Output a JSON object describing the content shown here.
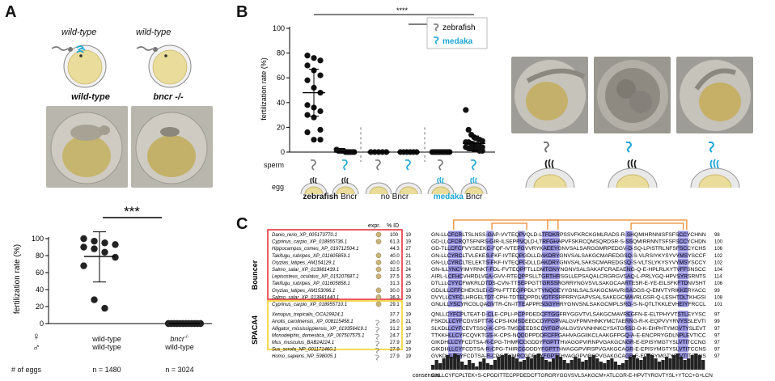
{
  "panel_a": {
    "letter": "A",
    "schematic_top_labels": [
      "wild-type",
      "wild-type"
    ],
    "genotypes": [
      "wild-type",
      "bncr -/-"
    ],
    "significance": "***",
    "female_symbol": "♀",
    "male_symbol": "♂",
    "x_groups": [
      {
        "line1": "wild-type",
        "line2": "wild-type"
      },
      {
        "line1": "bncr",
        "line1_sup": "-/-",
        "line2": "wild-type"
      }
    ],
    "eggs_label": "# of eggs",
    "egg_counts": [
      "n = 1480",
      "n = 3024"
    ]
  },
  "panel_b": {
    "letter": "B",
    "sperm_label": "sperm",
    "egg_label": "egg",
    "sig_labels": [
      "****",
      "**",
      "****"
    ],
    "legend": {
      "zebrafish": "zebrafish",
      "medaka": "medaka"
    },
    "group_labels": [
      {
        "prefix": "zebrafish",
        "suffix": " Bncr"
      },
      {
        "prefix": "no",
        "suffix": " Bncr"
      },
      {
        "prefix": "medaka",
        "suffix": " Bncr"
      }
    ]
  },
  "panel_c": {
    "letter": "C",
    "col_expr": "expr.",
    "col_id": "% ID",
    "group_bouncer": "Bouncer",
    "group_spaca4": "SPACA4",
    "consensus_label": "consensus",
    "consensus_seq": "GNLLCYFCPLTEK+S-CPGDITTECPPDEDCFTGRGRYGGVSVLSAKGCM+ATLCGR-E-HPVTYRGVTYSL+YTCC+G+LCN",
    "rows": [
      {
        "name": "Danio_rerio_XP_005173770.1",
        "id": "100",
        "start": "19",
        "seq": "GN-LLCFCRLTSLNSS-GAP-VVTEQPVQLD-LTFDKRPSSVFKRCKGMLRADS-R-SHQMIHRNNISFSFSCCYCHNN",
        "end": "98"
      },
      {
        "name": "Cyprinus_carpio_XP_018955736.1",
        "id": "61.3",
        "start": "19",
        "seq": "GD-LLCFCRQTSFNRS-GIR-ILSEPPVQLD-LTRFGHAPVFSKRCQMSQRDSR-S-SSQMIRRNNTSFSFSCCYCHDN",
        "end": "100"
      },
      {
        "name": "Hippocampus_comes_XP_019712504.1",
        "id": "44.3",
        "start": "27",
        "seq": "GD-TLLCFCFVYSEEKC-FQF-IVTEPGVVRYKAEEYGNVSALSARGGMRPEDGV-D-SQ-LPISTRLNFSFSCCYCHSN",
        "end": "106"
      },
      {
        "name": "Takifugu_rubripes_XP_011605859.1",
        "id": "40.0",
        "start": "21",
        "seq": "GN-LLCYRCLTVLEKES-FKF-IVTEQPGDLLDAKDRYGNVSALSAKGCMAREDGSQ-S-VLRSIYKYSYVYMSYSCCFCHSS",
        "end": "102"
      },
      {
        "name": "Oryzias_latipes_AM154129.1",
        "id": "40.0",
        "start": "21",
        "seq": "GN-LLCYRCLTELEKTS-FKF-IVTEQPGDLLDAKDRYGNVSALSAKSCMAREDGSQ-S-VLTSLYKYSYVYMSYSCCYCHSS",
        "end": "102"
      },
      {
        "name": "Salmo_salar_XP_013981439.1",
        "id": "32.5",
        "start": "24",
        "seq": "GN-ILLYNCYIMYRNKT-FDL-FVTEQPFTLLDMTGNYNGNVSALSAKAFCRAEAENG-Q-E-HPLRLKYTVFFSNSCCSGYHTN",
        "end": "104"
      },
      {
        "name": "Lepisosteus_oculatus_XP_015207687.1",
        "id": "37.5",
        "start": "35",
        "seq": "AIRL-LCFHCVHRDLVEA-GVV-RTEQPPSLLTGRTHRSGLLEPSAQALCRGRGVSAQ-L-PRLYGQ-HPVSYRSRNTSTSSCCSDLLHTN",
        "end": "114"
      },
      {
        "name": "Takifugu_rubripes_XP_011605858.1",
        "id": "31.3",
        "start": "25",
        "seq": "DTLLLCYYCFWKRLDTDS-CVN-TTSEPPGTTGRSSRGRRYNGVSVLSAKGCAARTESR-E-YE-EILSFKFTDNVSHTSCCKDCHTN",
        "end": "106"
      },
      {
        "name": "Oryzias_latipes_AM153096.1",
        "id": "30.0",
        "start": "19",
        "seq": "GDLILLCFFCHEKSLEI-CPN-FTTEQPPDLYTYNQGEYYGNLSALSAKGCMAVRISADGS-Q-EMVTYRIKKERYACCNDCFHTN",
        "end": "99"
      },
      {
        "name": "Salmo_salar_XP_013981440.1",
        "id": "36.3",
        "start": "29",
        "seq": "DVYLLCYFCLHRGELTDT-CPH-TDTEQPPDLVDTFSRPRRYGAPVSALSAKEGCMAVRLGSR-Q-LESHTDLTKHGSIFTCCSDLLHTN",
        "end": "108"
      },
      {
        "name": "Cyprinus_carpio_XP_018955710.1",
        "id": "29.1",
        "start": "18",
        "seq": "GNLILLYSCYRCGLQAGVTR-CN-ITTEAPPRSGGYHRYGNVSNLSAKGCMPLSRG-S-N-QTLTKKLEVHEIYFRCCLNN",
        "end": "101"
      },
      {
        "name": "Xenopus_tropicalis_OCA29924.1",
        "id": "37.7",
        "start": "19",
        "seq": "QNLLCYFCPLTEAT-D-CLE-CPLI-PCPPDEDCFTGGFRYGGVTVLSAKGCMAVREGFN-E-ELTPHYVTSTLEYYSCCHSNLCN",
        "end": "97"
      },
      {
        "name": "Anolis_carolinensis_XP_008115458.1",
        "id": "26.0",
        "start": "21",
        "seq": "FSKDLLCYFCDVSPTT-K-CPS-IKMSDEEDCDYFGPVALGVFPMVHNKYMCTAERNG-R-K-EQPVVYRVYSSLEVTICCHTDLCN",
        "end": "99"
      },
      {
        "name": "Alligator_mississippiensis_XP_019356419.1",
        "id": "31.2",
        "start": "18",
        "seq": "SLKDLLCYFCEVTSSQ-K-CPS-TMSDEEDSCDYFGPVALGVSVVNHNKCYSATGRSG-D-K-EHPHTYMGVTYSLEVTICCHTDLCN",
        "end": "97"
      },
      {
        "name": "Monodelphis_domestica_XP_007507575.1",
        "id": "24.7",
        "start": "17",
        "seq": "TTKKHLLCYFCQVKTGS-K-CPS-NQDDPPDDFCFPGAHVAGGIIKCLAAKGFPGQ-A-E-ENCPRYGDLNPLEVTICCGLPLCN",
        "end": "97"
      },
      {
        "name": "Mus_musculus_BAB24224.1",
        "id": "27.9",
        "start": "19",
        "seq": "GIKDHLLCYFCDTSA-R-CPG-THMRCGGDDYFGPTTHVAGGPVIRNPVGAKGCNGR-E-EPISYMGTYSLVTITCCNGENLCN",
        "end": "97"
      },
      {
        "name": "Sus_scrofa_NP_001171460.1",
        "id": "27.9",
        "start": "19",
        "seq": "GIKDHLLCYFCDTSA-R-CPG-THIRCGDDDYFGPTTHVAGGPVIRSPVGAKGCAGR-E-EPISYMGTYSLVTITCCNSENLCN",
        "end": "97"
      },
      {
        "name": "Homo_sapiens_NP_598005.1",
        "id": "27.9",
        "start": "19",
        "seq": "GVKDHLLCYFCDTSA-R-CPG-TYMRCGDDDYFGPTTHVAGGPVIRSPVGAKGCAGR-E-EPVSYMGTYSLVTITCCNSENLCN",
        "end": "97"
      }
    ]
  },
  "colors": {
    "medaka": "#1aa6d6",
    "box_bouncer": "#e8343a",
    "box_spaca4": "#f2d02a",
    "orange": "#ec8a2e",
    "highlight": "#6f6ad0"
  },
  "chart_data": [
    {
      "type": "scatter",
      "panel": "A",
      "xlabel": "",
      "ylabel": "fertilization rate (%)",
      "ylim": [
        0,
        100
      ],
      "yticks": [
        0,
        20,
        40,
        60,
        80,
        100
      ],
      "categories": [
        "wild-type ♀ × wild-type ♂",
        "bncr -/- ♀ × wild-type ♂"
      ],
      "series": [
        {
          "name": "",
          "values": [
            [
              100,
              97,
              95,
              93,
              90,
              88,
              84,
              78,
              68,
              28,
              18
            ],
            [
              0,
              0,
              0,
              0,
              0,
              0,
              0,
              0,
              0,
              0,
              0,
              0,
              0,
              0,
              0,
              0,
              0,
              0,
              0,
              0,
              0,
              0,
              0,
              0
            ]
          ]
        }
      ],
      "summary": [
        {
          "mean": 79,
          "sd_low": 49,
          "sd_high": 108
        },
        {
          "mean": 0,
          "sd_low": 0,
          "sd_high": 0
        }
      ],
      "grid": false
    },
    {
      "type": "scatter",
      "panel": "B",
      "xlabel": "",
      "ylabel": "fertilization rate (%)",
      "ylim": [
        0,
        100
      ],
      "yticks": [
        0,
        20,
        40,
        60,
        80,
        100
      ],
      "categories": [
        "zebrafish Bncr + zebrafish sperm",
        "zebrafish Bncr + medaka sperm",
        "no Bncr + zebrafish sperm",
        "no Bncr + medaka sperm",
        "medaka Bncr + zebrafish sperm",
        "medaka Bncr + medaka sperm"
      ],
      "series": [
        {
          "name": "zebrafish",
          "values": [
            [
              78,
              76,
              74,
              70,
              66,
              62,
              58,
              52,
              48,
              38,
              36,
              33,
              30,
              28,
              18,
              16,
              10,
              10
            ],
            [],
            [
              0,
              0,
              0,
              0,
              0
            ],
            [],
            [
              0,
              0,
              0,
              0,
              0,
              0,
              0,
              0,
              0,
              0
            ],
            []
          ]
        },
        {
          "name": "medaka",
          "values": [
            [],
            [
              2,
              1,
              1,
              1,
              1,
              0,
              0,
              0,
              0,
              0,
              0
            ],
            [],
            [
              0,
              0,
              0,
              0,
              0,
              0
            ],
            [],
            [
              34,
              18,
              14,
              12,
              11,
              10,
              9,
              8,
              8,
              7,
              6,
              6,
              5,
              4,
              4,
              3,
              3,
              2,
              2,
              1,
              1
            ]
          ]
        }
      ],
      "summary": [
        {
          "mean": 48,
          "sd_low": 29,
          "sd_high": 67
        },
        {
          "mean": 0
        },
        {
          "mean": 0
        },
        {
          "mean": 0
        },
        {
          "mean": 0
        },
        {
          "mean": 7,
          "sd_low": 1,
          "sd_high": 13
        }
      ],
      "significance": [
        {
          "from": 0,
          "to": 5,
          "label": "****"
        },
        {
          "from": 3,
          "to": 5,
          "label": "**"
        },
        {
          "from": 4,
          "to": 5,
          "label": "****"
        }
      ],
      "legend": "right",
      "grid": false
    },
    {
      "type": "bar",
      "panel": "C",
      "title": "",
      "xlabel": "consensus",
      "values": [
        3,
        6,
        4,
        7,
        9,
        8,
        10,
        9,
        5,
        3,
        6,
        4,
        2,
        5,
        7,
        4,
        3,
        6,
        8,
        9,
        10,
        9,
        8,
        7,
        5,
        6,
        8,
        7,
        9,
        10,
        8,
        6,
        5,
        7,
        9,
        8,
        6,
        4,
        6,
        8,
        7,
        5,
        6,
        8,
        9,
        7,
        5,
        4,
        6,
        7,
        5,
        3,
        4,
        6,
        8,
        9,
        7,
        6,
        8,
        10,
        9,
        7,
        5,
        6,
        8,
        7,
        9,
        10,
        8,
        6,
        7,
        9,
        10,
        9,
        6
      ]
    }
  ]
}
